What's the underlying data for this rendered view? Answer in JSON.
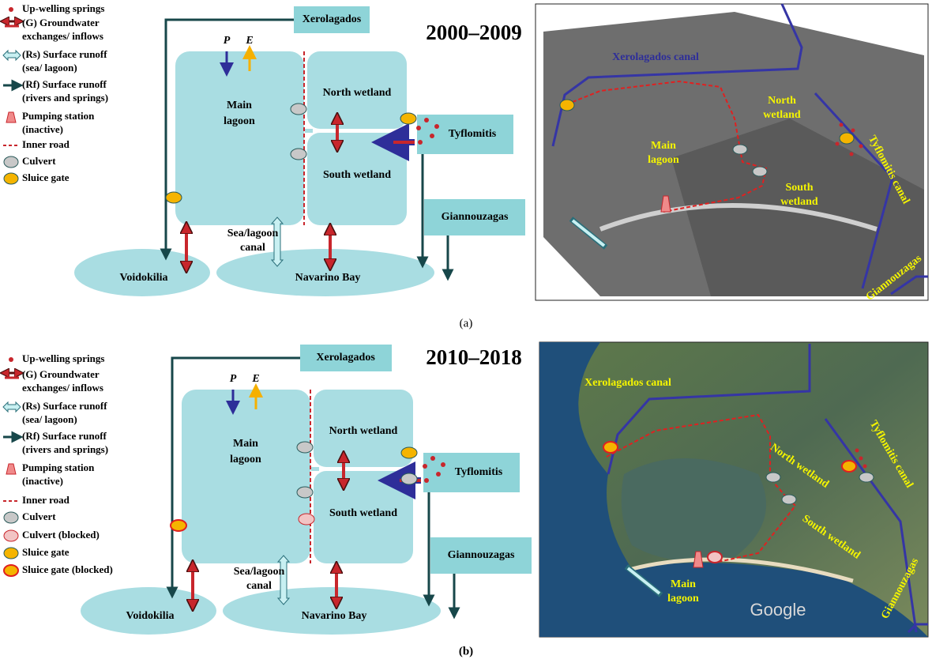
{
  "panels": [
    {
      "caption": "(a)",
      "period": "2000–2009",
      "legend": [
        [
          "Up-welling springs"
        ],
        [
          "(G) Groundwater",
          "exchanges/ inflows"
        ],
        [
          "(Rs) Surface runoff",
          "(sea/ lagoon)"
        ],
        [
          "(Rf) Surface runoff",
          "(rivers and springs)"
        ],
        [
          "Pumping station",
          "(inactive)"
        ],
        [
          "Inner road"
        ],
        [
          "Culvert"
        ],
        [
          "Sluice gate"
        ]
      ],
      "diagram": {
        "xerolagados": "Xerolagados",
        "p": "P",
        "e": "E",
        "main_lagoon": [
          "Main",
          "lagoon"
        ],
        "north_wetland": "North wetland",
        "south_wetland": "South wetland",
        "tyflomitis": "Tyflomitis",
        "giannouzagas": "Giannouzagas",
        "canal": [
          "Sea/lagoon",
          "canal"
        ],
        "voidokilia": "Voidokilia",
        "navarino": "Navarino Bay"
      },
      "map": {
        "xerolagados_canal": [
          "Xerolagados canal"
        ],
        "north_wetland": [
          "North",
          "wetland"
        ],
        "main_lagoon": [
          "Main",
          "lagoon"
        ],
        "south_wetland": [
          "South",
          "wetland"
        ],
        "tyflomitis_canal": [
          "Tyflomitis canal"
        ],
        "giannouzagas": [
          "Giannouzagas"
        ]
      }
    },
    {
      "caption": "(b)",
      "period": "2010–2018",
      "legend": [
        [
          "Up-welling springs"
        ],
        [
          "(G) Groundwater",
          "exchanges/ inflows"
        ],
        [
          "(Rs) Surface runoff",
          "(sea/ lagoon)"
        ],
        [
          "(Rf) Surface runoff",
          "(rivers and springs)"
        ],
        [
          "Pumping station",
          "(inactive)"
        ],
        [
          "Inner road"
        ],
        [
          "Culvert"
        ],
        [
          "Culvert (blocked)"
        ],
        [
          "Sluice gate"
        ],
        [
          "Sluice gate (blocked)"
        ]
      ],
      "diagram": {
        "xerolagados": "Xerolagados",
        "p": "P",
        "e": "E",
        "main_lagoon": [
          "Main",
          "lagoon"
        ],
        "north_wetland": "North wetland",
        "south_wetland": "South wetland",
        "tyflomitis": "Tyflomitis",
        "giannouzagas": "Giannouzagas",
        "canal": [
          "Sea/lagoon",
          "canal"
        ],
        "voidokilia": "Voidokilia",
        "navarino": "Navarino Bay"
      },
      "map": {
        "xerolagados_canal": [
          "Xerolagados canal"
        ],
        "north_wetland": [
          "North wetland"
        ],
        "main_lagoon": [
          "Main",
          "lagoon"
        ],
        "south_wetland": [
          "South wetland"
        ],
        "tyflomitis_canal": [
          "Tyflomitis canal"
        ],
        "giannouzagas": [
          "Giannouzagas"
        ],
        "google": "Google"
      }
    }
  ]
}
